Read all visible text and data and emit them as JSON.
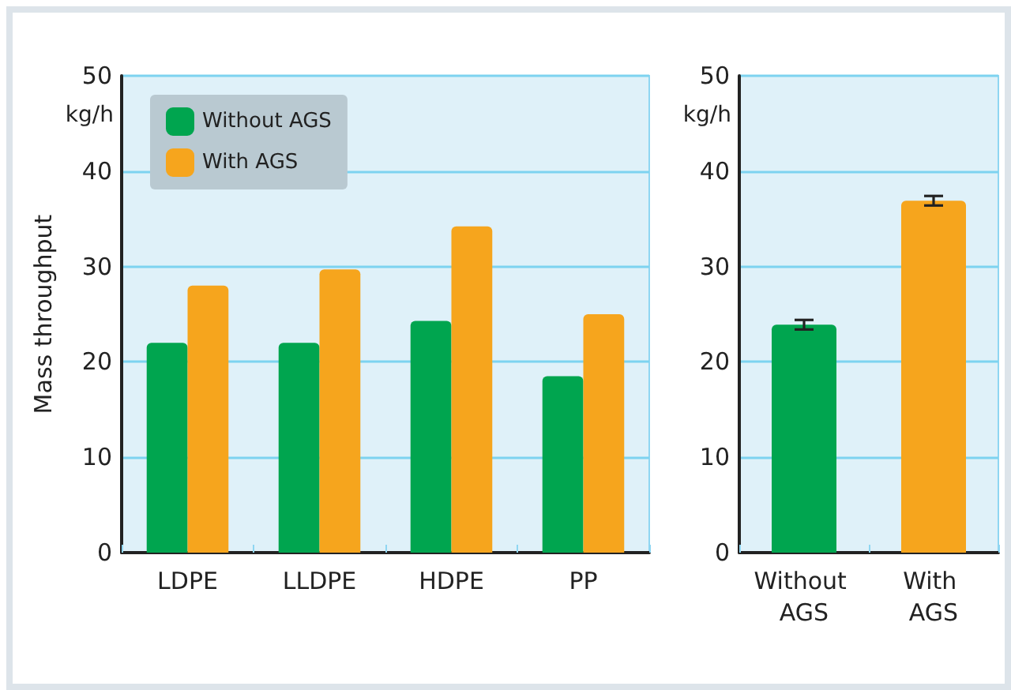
{
  "chart_data": [
    {
      "type": "bar",
      "ylabel": "Mass throughput",
      "annotations": [
        "kg/h"
      ],
      "categories": [
        "LDPE",
        "LLDPE",
        "HDPE",
        "PP"
      ],
      "series": [
        {
          "name": "Without AGS",
          "color": "#00a54f",
          "values": [
            22.0,
            22.0,
            24.3,
            18.5
          ]
        },
        {
          "name": "With AGS",
          "color": "#f6a51d",
          "values": [
            28.0,
            29.7,
            34.2,
            25.0
          ]
        }
      ],
      "ylim": [
        0,
        50
      ],
      "yticks": [
        0,
        10,
        20,
        30,
        40,
        50
      ],
      "grid": "y",
      "legend": "top left"
    },
    {
      "type": "bar",
      "annotations": [
        "kg/h"
      ],
      "categories": [
        "Without AGS",
        "With AGS"
      ],
      "values": [
        23.9,
        36.9
      ],
      "colors": [
        "#00a54f",
        "#f6a51d"
      ],
      "errors": [
        0.5,
        0.5
      ],
      "ylim": [
        0,
        50
      ],
      "yticks": [
        0,
        10,
        20,
        30,
        40,
        50
      ],
      "grid": "y"
    }
  ]
}
